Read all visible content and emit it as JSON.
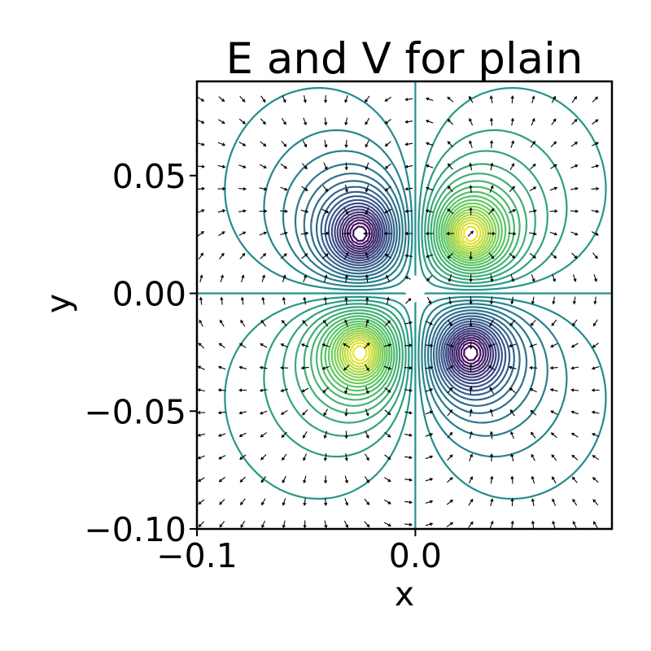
{
  "chart_data": {
    "type": "contour",
    "title": "E and V for plain",
    "xlabel": "x",
    "ylabel": "y",
    "xlim": [
      -0.1,
      0.09
    ],
    "ylim": [
      -0.1,
      0.09
    ],
    "x_ticks": [
      -0.1,
      0.0
    ],
    "x_tick_labels": [
      "−0.1",
      "0.0"
    ],
    "y_ticks": [
      0.05,
      0.0,
      -0.05,
      -0.1
    ],
    "y_tick_labels": [
      "0.05",
      "0.00",
      "−0.05",
      "−0.10"
    ],
    "grid": false,
    "legend": false,
    "colormap": "viridis",
    "colors": [
      "#440154",
      "#3b528b",
      "#21918c",
      "#5ec962",
      "#fde725"
    ],
    "contour_levels": 40,
    "charges": [
      {
        "x": -0.025,
        "y": 0.025,
        "sign": "negative"
      },
      {
        "x": 0.025,
        "y": 0.025,
        "sign": "positive"
      },
      {
        "x": -0.025,
        "y": -0.025,
        "sign": "positive"
      },
      {
        "x": 0.025,
        "y": -0.025,
        "sign": "negative"
      }
    ],
    "field_vectors": "quiver arrows showing E (black)"
  }
}
